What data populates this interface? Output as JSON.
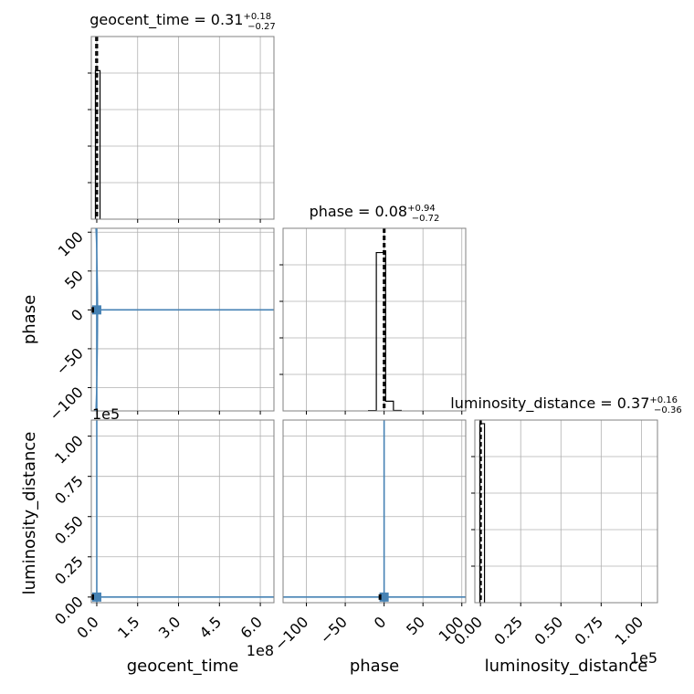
{
  "chart_data": {
    "type": "corner",
    "parameters": [
      "geocent_time",
      "phase",
      "luminosity_distance"
    ],
    "colors": {
      "contour": "#4682b4",
      "hist": "#000000",
      "grid": "#b0b0b0",
      "frame": "#808080"
    },
    "diagonal": [
      {
        "parameter": "geocent_time",
        "title": {
          "prefix": "geocent_time = 0.31",
          "plus": "+0.18",
          "minus": "−0.27"
        },
        "xlim": [
          -20000000,
          650000000
        ],
        "xticks": [
          0,
          150000000,
          300000000,
          450000000,
          600000000
        ],
        "xtick_labels": [
          "0.0",
          "1.5",
          "3.0",
          "4.5",
          "6.0"
        ],
        "offset_label": "1e8",
        "hist": {
          "bins": [
            [
              -5000000,
              12000000
            ]
          ],
          "values": [
            1.0
          ],
          "ylim": [
            0,
            1.23
          ]
        },
        "quantile_lines": [
          -4000000,
          0,
          3000000
        ]
      },
      {
        "parameter": "phase",
        "title": {
          "prefix": "phase = 0.08",
          "plus": "+0.94",
          "minus": "−0.72"
        },
        "xlim": [
          -130,
          105
        ],
        "xticks": [
          -100,
          -50,
          0,
          50,
          100
        ],
        "xtick_labels": [
          "−100",
          "−50",
          "0",
          "50",
          "100"
        ],
        "hist": {
          "bins": [
            [
              -20,
              -10
            ],
            [
              -10,
              -1
            ],
            [
              -1,
              2
            ],
            [
              2,
              12
            ],
            [
              12,
              22
            ]
          ],
          "values": [
            0.002,
            0.98,
            0.99,
            0.06,
            0.003
          ],
          "ylim": [
            0,
            1.13
          ]
        },
        "quantile_lines": [
          -1,
          0.08,
          1.2
        ]
      },
      {
        "parameter": "luminosity_distance",
        "title": {
          "prefix": "luminosity_distance = 0.37",
          "plus": "+0.16",
          "minus": "−0.36"
        },
        "xlim": [
          -3500,
          110000
        ],
        "xticks": [
          0,
          25000,
          50000,
          75000,
          100000
        ],
        "xtick_labels": [
          "0.00",
          "0.25",
          "0.50",
          "0.75",
          "1.00"
        ],
        "offset_label": "1e5",
        "hist": {
          "bins": [
            [
              -400,
              2500
            ]
          ],
          "values": [
            1.0
          ],
          "ylim": [
            0,
            1.02
          ]
        },
        "quantile_lines": [
          -300,
          0,
          500
        ]
      }
    ],
    "ylim": {
      "phase": [
        -130,
        105
      ],
      "luminosity_distance": [
        -3500,
        110000
      ]
    },
    "yticks": {
      "phase": [
        -100,
        -50,
        0,
        50,
        100
      ],
      "luminosity_distance": [
        0,
        25000,
        50000,
        75000,
        100000
      ]
    },
    "ytick_labels": {
      "phase": [
        "−100",
        "−50",
        "0",
        "50",
        "100"
      ],
      "luminosity_distance": [
        "0.00",
        "0.25",
        "0.50",
        "0.75",
        "1.00"
      ]
    },
    "y_offset_label": "1e5",
    "panels": {
      "phase_vs_geocent_time": {
        "point": [
          0,
          0
        ],
        "spike_y": [
          -130,
          105
        ],
        "line_y": 0
      },
      "luminosity_distance_vs_geocent_time": {
        "point": [
          0,
          0
        ]
      },
      "luminosity_distance_vs_phase": {
        "point": [
          0,
          0
        ]
      }
    },
    "xlabels": [
      "geocent_time",
      "phase",
      "luminosity_distance"
    ],
    "ylabels": [
      "phase",
      "luminosity_distance"
    ],
    "grid": true
  }
}
